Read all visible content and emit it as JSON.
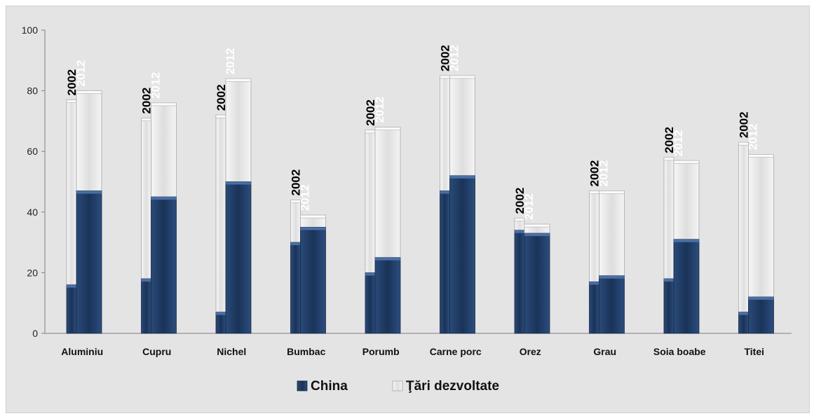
{
  "chart_data": {
    "type": "bar",
    "stacked": true,
    "categories": [
      "Aluminiu",
      "Cupru",
      "Nichel",
      "Bumbac",
      "Porumb",
      "Carne porc",
      "Orez",
      "Grau",
      "Soia boabe",
      "Titei"
    ],
    "bar_labels": [
      "2002",
      "2012"
    ],
    "series": [
      {
        "name": "China",
        "color": "#1f3b63",
        "values_2002": [
          16,
          18,
          7,
          30,
          20,
          47,
          34,
          17,
          18,
          7
        ],
        "values_2012": [
          47,
          45,
          50,
          35,
          25,
          52,
          33,
          19,
          31,
          12
        ]
      },
      {
        "name": "Ţări dezvoltate",
        "color": "#f2f2f2",
        "values_2002": [
          61,
          53,
          65,
          14,
          47,
          38,
          4,
          30,
          40,
          56
        ],
        "values_2012": [
          33,
          31,
          34,
          4,
          43,
          33,
          3,
          28,
          26,
          47
        ]
      }
    ],
    "yticks": [
      0,
      20,
      40,
      60,
      80,
      100
    ],
    "ylim": [
      0,
      100
    ],
    "grid": false,
    "legend_position": "bottom"
  }
}
